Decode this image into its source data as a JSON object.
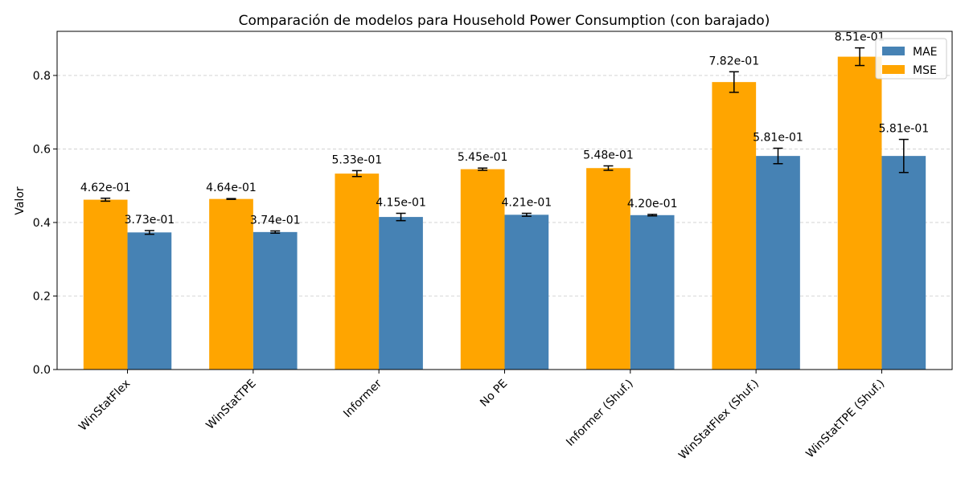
{
  "chart_data": {
    "type": "bar",
    "title": "Comparación de modelos para Household Power Consumption (con barajado)",
    "xlabel": "",
    "ylabel": "Valor",
    "ylim": [
      0,
      0.92
    ],
    "yticks": [
      0.0,
      0.2,
      0.4,
      0.6,
      0.8
    ],
    "ytick_labels": [
      "0.0",
      "0.2",
      "0.4",
      "0.6",
      "0.8"
    ],
    "grid": "y-dashed",
    "legend_position": "top-right",
    "categories": [
      "WinStatFlex",
      "WinStatTPE",
      "Informer",
      "No PE",
      "Informer (Shuf.)",
      "WinStatFlex (Shuf.)",
      "WinStatTPE (Shuf.)"
    ],
    "series": [
      {
        "name": "MSE",
        "color": "#FFA500",
        "values": [
          0.462,
          0.464,
          0.533,
          0.545,
          0.548,
          0.782,
          0.851
        ],
        "errors": [
          0.004,
          0.001,
          0.008,
          0.003,
          0.006,
          0.028,
          0.024
        ],
        "labels": [
          "4.62e-01",
          "4.64e-01",
          "5.33e-01",
          "5.45e-01",
          "5.48e-01",
          "7.82e-01",
          "8.51e-01"
        ]
      },
      {
        "name": "MAE",
        "color": "#4682B4",
        "values": [
          0.373,
          0.374,
          0.415,
          0.421,
          0.42,
          0.581,
          0.581
        ],
        "errors": [
          0.005,
          0.003,
          0.01,
          0.004,
          0.002,
          0.021,
          0.045
        ],
        "labels": [
          "3.73e-01",
          "3.74e-01",
          "4.15e-01",
          "4.21e-01",
          "4.20e-01",
          "5.81e-01",
          "5.81e-01"
        ]
      }
    ],
    "legend_order": [
      "MAE",
      "MSE"
    ]
  }
}
